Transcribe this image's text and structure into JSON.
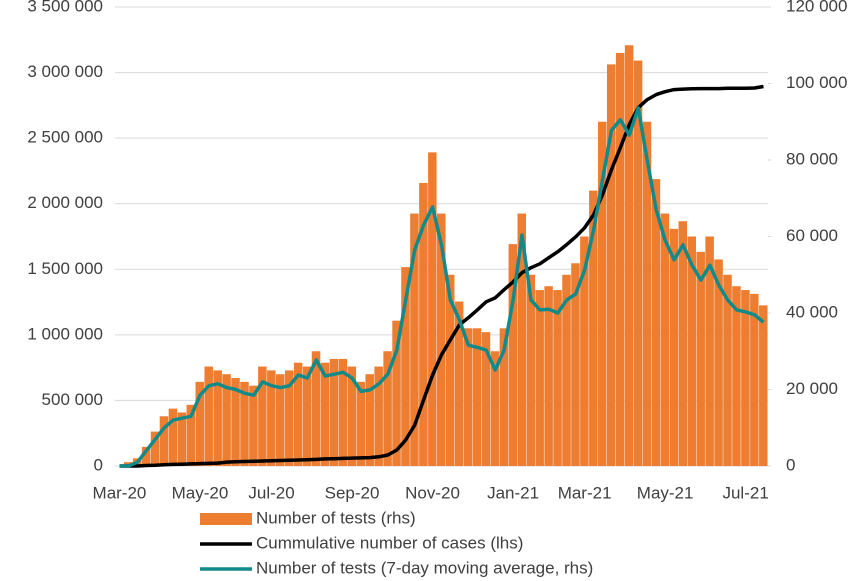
{
  "chart_data": {
    "type": "bar-line",
    "categories": [
      "Mar-20",
      null,
      null,
      null,
      null,
      null,
      null,
      null,
      null,
      "May-20",
      null,
      null,
      null,
      null,
      null,
      null,
      null,
      "Jul-20",
      null,
      null,
      null,
      null,
      null,
      null,
      null,
      null,
      "Sep-20",
      null,
      null,
      null,
      null,
      null,
      null,
      null,
      null,
      "Nov-20",
      null,
      null,
      null,
      null,
      null,
      null,
      null,
      null,
      "Jan-21",
      null,
      null,
      null,
      null,
      null,
      null,
      null,
      "Mar-21",
      null,
      null,
      null,
      null,
      null,
      null,
      null,
      null,
      "May-21",
      null,
      null,
      null,
      null,
      null,
      null,
      null,
      null,
      "Jul-21",
      null,
      null
    ],
    "series": [
      {
        "name": "Number of tests (rhs)",
        "type": "bar",
        "axis": "y2",
        "color": "#ed7d31",
        "values": [
          0,
          1000,
          2000,
          5000,
          9000,
          13000,
          15000,
          14000,
          16000,
          22000,
          26000,
          25000,
          24000,
          23000,
          22000,
          21000,
          26000,
          25000,
          24000,
          25000,
          27000,
          26000,
          30000,
          27000,
          28000,
          28000,
          26000,
          22000,
          24000,
          26000,
          30000,
          38000,
          52000,
          66000,
          74000,
          82000,
          66000,
          50000,
          43000,
          36000,
          36000,
          35000,
          30000,
          36000,
          58000,
          66000,
          50000,
          46000,
          47000,
          46000,
          50000,
          53000,
          60000,
          72000,
          90000,
          105000,
          108000,
          110000,
          106000,
          90000,
          75000,
          66000,
          62000,
          64000,
          60000,
          56000,
          60000,
          54000,
          50000,
          47000,
          46000,
          45000,
          42000
        ]
      },
      {
        "name": "Cummulative number of cases (lhs)",
        "type": "line",
        "color": "#000000",
        "values": [
          0,
          0,
          0,
          4000,
          6000,
          10000,
          12000,
          14000,
          16000,
          18000,
          20000,
          22000,
          30000,
          32000,
          34000,
          36000,
          38000,
          40000,
          42000,
          44000,
          46000,
          48000,
          50000,
          54000,
          56000,
          58000,
          60000,
          62000,
          64000,
          70000,
          84000,
          122000,
          198000,
          312000,
          504000,
          694000,
          848000,
          962000,
          1076000,
          1130000,
          1190000,
          1252000,
          1282000,
          1344000,
          1404000,
          1474000,
          1512000,
          1542000,
          1588000,
          1634000,
          1688000,
          1748000,
          1816000,
          1916000,
          2068000,
          2260000,
          2428000,
          2604000,
          2732000,
          2794000,
          2832000,
          2854000,
          2870000,
          2874000,
          2876000,
          2878000,
          2878000,
          2878000,
          2880000,
          2880000,
          2880000,
          2882000,
          2894000
        ]
      },
      {
        "name": "Number of tests (7-day moving average, rhs)",
        "type": "line",
        "axis": "y2",
        "color": "#138a8a",
        "values": [
          0,
          0,
          1000,
          4000,
          7000,
          10000,
          12000,
          12500,
          13000,
          18500,
          21000,
          21500,
          20500,
          20000,
          19000,
          18500,
          22000,
          21000,
          20500,
          21000,
          23800,
          23000,
          27700,
          23500,
          24000,
          24500,
          23000,
          19500,
          19900,
          21500,
          24000,
          30300,
          43400,
          56500,
          63000,
          67700,
          57800,
          43400,
          38200,
          31600,
          31000,
          30300,
          25100,
          30300,
          43400,
          60400,
          43400,
          40800,
          41000,
          40000,
          43400,
          45000,
          51200,
          61700,
          74800,
          87800,
          90500,
          86500,
          93600,
          80000,
          67000,
          59000,
          53900,
          57800,
          52500,
          48600,
          52500,
          47300,
          43400,
          40800,
          40300,
          39500,
          37600
        ]
      }
    ],
    "ylim": [
      0,
      3500000
    ],
    "yticks": [
      0,
      {
        "value": 500000,
        "label": "500 000"
      },
      {
        "value": 1000000,
        "label": "1 000 000"
      },
      {
        "value": 1500000,
        "label": "1 500 000"
      },
      {
        "value": 2000000,
        "label": "2 000 000"
      },
      {
        "value": 2500000,
        "label": "2 500 000"
      },
      {
        "value": 3000000,
        "label": "3 000 000"
      },
      {
        "value": 3500000,
        "label": "3 500 000"
      }
    ],
    "y2lim": [
      0,
      120000
    ],
    "y2ticks": [
      0,
      {
        "value": 20000,
        "label": "20 000"
      },
      {
        "value": 40000,
        "label": "40 000"
      },
      {
        "value": 60000,
        "label": "60 000"
      },
      {
        "value": 80000,
        "label": "80 000"
      },
      {
        "value": 100000,
        "label": "100 000"
      },
      {
        "value": 120000,
        "label": "120 000"
      }
    ],
    "grid": true,
    "legend": "bottom"
  }
}
